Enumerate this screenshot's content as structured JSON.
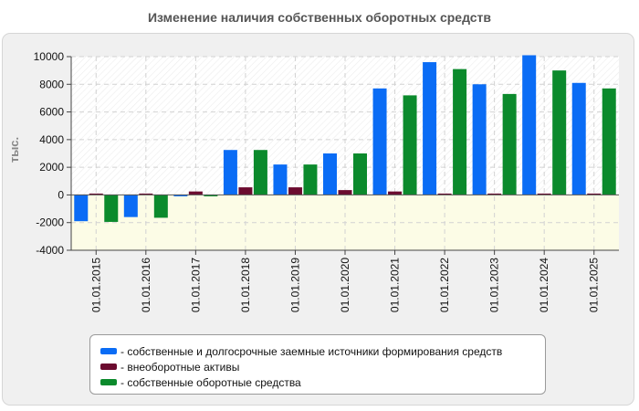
{
  "chart_data": {
    "type": "bar",
    "title": "Изменение наличия собственных оборотных средств",
    "ylabel": "тыс.",
    "xlabel": "",
    "ylim": [
      -4000,
      10000
    ],
    "yticks": [
      -4000,
      -2000,
      0,
      2000,
      4000,
      6000,
      8000,
      10000
    ],
    "categories": [
      "01.01.2015",
      "01.01.2016",
      "01.01.2017",
      "01.01.2018",
      "01.01.2019",
      "01.01.2020",
      "01.01.2021",
      "01.01.2022",
      "01.01.2023",
      "01.01.2024",
      "01.01.2025"
    ],
    "series": [
      {
        "name": "- собственные и долгосрочные заемные источники формирования средств",
        "color": "#0a6cf5",
        "values": [
          -1900,
          -1600,
          -100,
          3250,
          2200,
          3000,
          7700,
          9600,
          8000,
          10100,
          8100
        ]
      },
      {
        "name": "- внеоборотные активы",
        "color": "#6b0b2f",
        "values": [
          100,
          100,
          250,
          550,
          550,
          350,
          250,
          100,
          100,
          100,
          100
        ]
      },
      {
        "name": "- собственные оборотные средства",
        "color": "#0b8a2c",
        "values": [
          -1950,
          -1650,
          -100,
          3250,
          2200,
          3000,
          7200,
          9100,
          7300,
          9000,
          7700
        ]
      }
    ],
    "grid": true,
    "legend_position": "bottom"
  }
}
